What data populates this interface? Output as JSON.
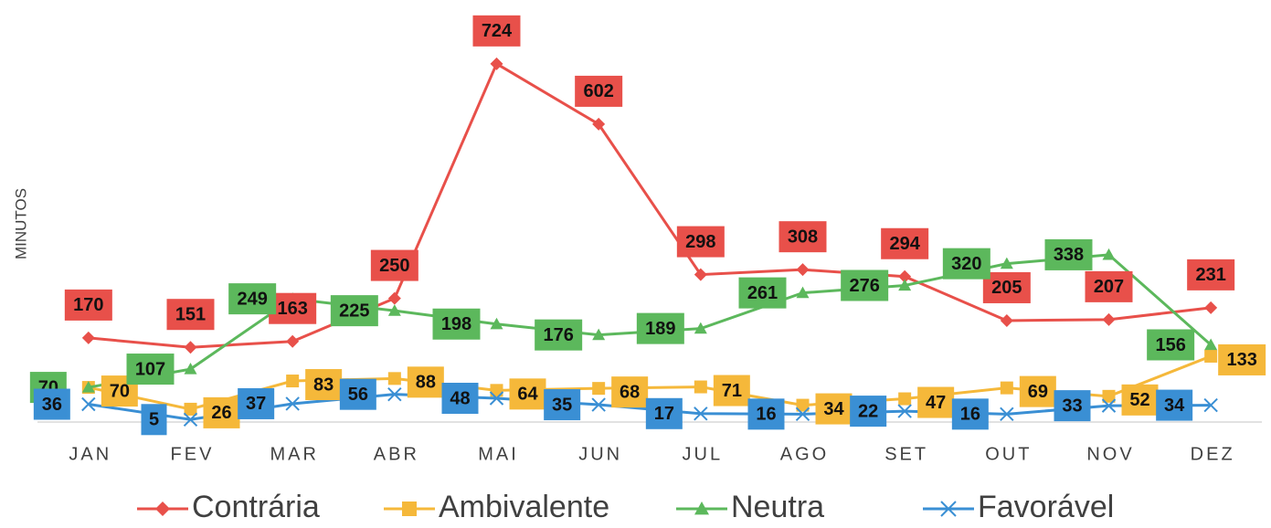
{
  "chart_data": {
    "type": "line",
    "y_label": "MINUTOS",
    "categories": [
      "JAN",
      "FEV",
      "MAR",
      "ABR",
      "MAI",
      "JUN",
      "JUL",
      "AGO",
      "SET",
      "OUT",
      "NOV",
      "DEZ"
    ],
    "series": [
      {
        "name": "Contrária",
        "color": "#e8504a",
        "marker": "diamond",
        "values": [
          170,
          151,
          163,
          250,
          724,
          602,
          298,
          308,
          294,
          205,
          207,
          231
        ]
      },
      {
        "name": "Ambivalente",
        "color": "#f5b83a",
        "marker": "square",
        "values": [
          70,
          26,
          83,
          88,
          64,
          68,
          71,
          34,
          47,
          69,
          52,
          133
        ]
      },
      {
        "name": "Neutra",
        "color": "#5cb85c",
        "marker": "triangle",
        "values": [
          70,
          107,
          249,
          225,
          198,
          176,
          189,
          261,
          276,
          320,
          338,
          156
        ]
      },
      {
        "name": "Favorável",
        "color": "#3a8fd4",
        "marker": "x",
        "values": [
          36,
          5,
          37,
          56,
          48,
          35,
          17,
          16,
          22,
          16,
          33,
          34
        ]
      }
    ],
    "ylim": [
      0,
      816
    ]
  }
}
